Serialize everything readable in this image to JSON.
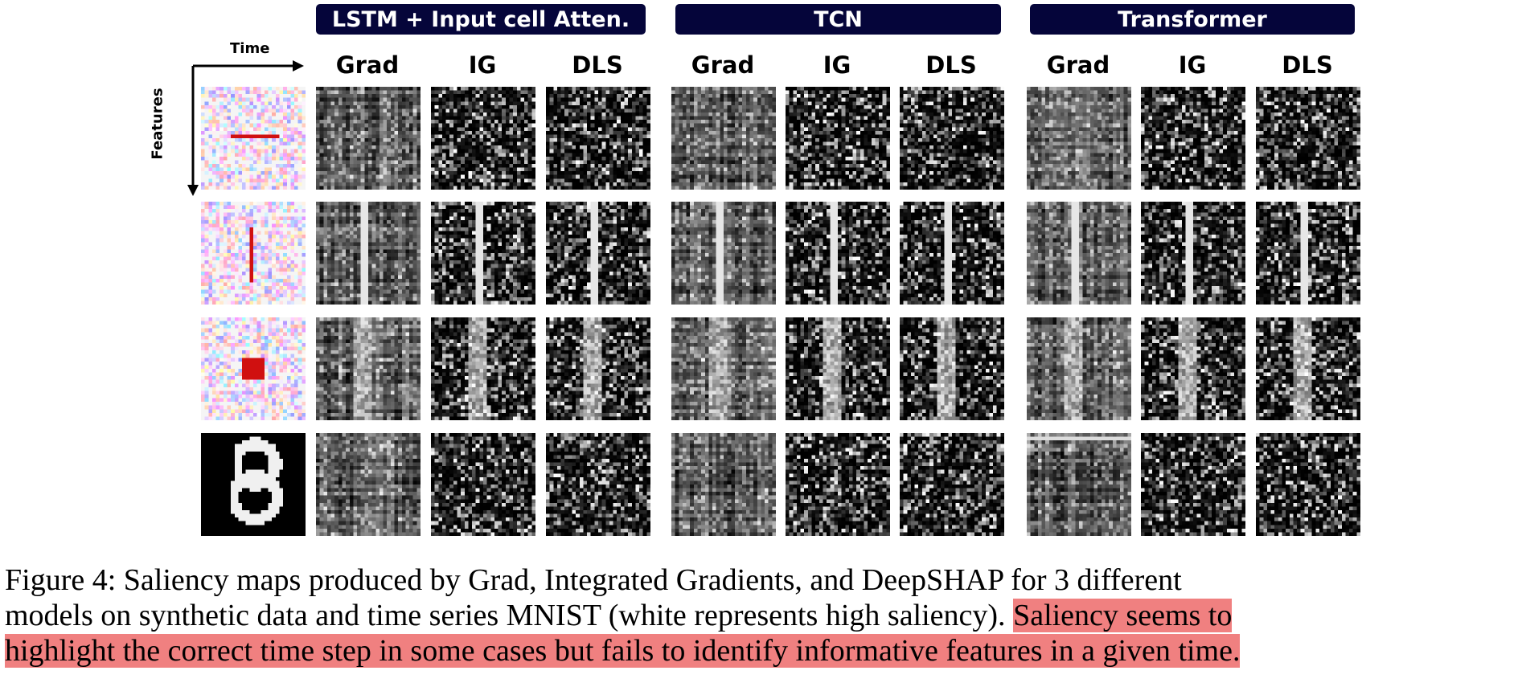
{
  "groups": [
    {
      "title": "LSTM + Input cell Atten.",
      "methods": [
        "Grad",
        "IG",
        "DLS"
      ]
    },
    {
      "title": "TCN",
      "methods": [
        "Grad",
        "IG",
        "DLS"
      ]
    },
    {
      "title": "Transformer",
      "methods": [
        "Grad",
        "IG",
        "DLS"
      ]
    }
  ],
  "axes": {
    "time_label": "Time",
    "features_label": "Features"
  },
  "colors": {
    "header_bg": "#05053a",
    "highlight": "#f08080",
    "signal_red": "#d01010"
  },
  "caption": {
    "line1": "Figure 4: Saliency maps produced by Grad, Integrated Gradients, and DeepSHAP for 3 different",
    "line2_plain": "models on synthetic data and time series MNIST (white represents high saliency).",
    "line2_highlight": "Saliency seems to",
    "line3_highlight": "highlight the correct time step in some cases but fails to identify informative features in a given time."
  }
}
